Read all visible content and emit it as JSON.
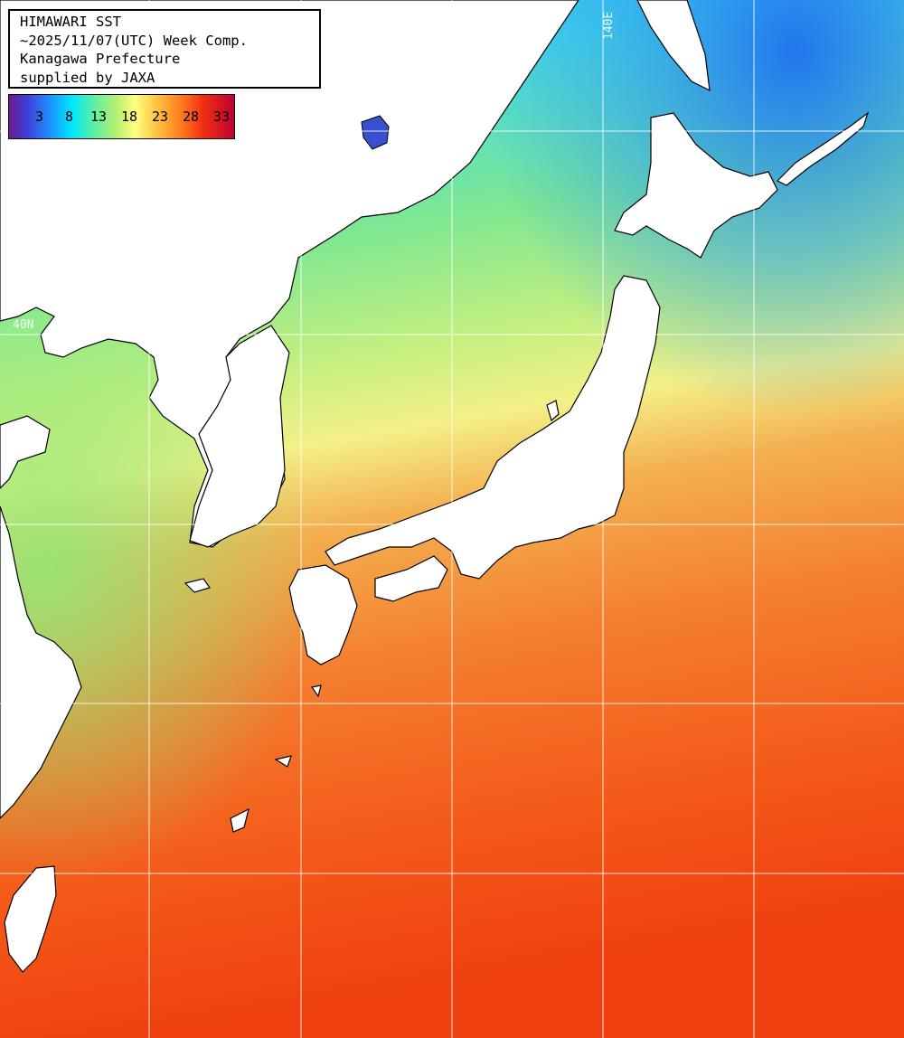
{
  "title": {
    "line1": "HIMAWARI SST",
    "line2": "~2025/11/07(UTC) Week Comp.",
    "line3": "Kanagawa Prefecture",
    "line4": "supplied by JAXA"
  },
  "legend": {
    "ticks": [
      "3",
      "8",
      "13",
      "18",
      "23",
      "28",
      "33"
    ],
    "colors": [
      "#6e1a8c",
      "#1e90ff",
      "#00e8ff",
      "#b9f070",
      "#ffff80",
      "#ff8020",
      "#c00030"
    ]
  },
  "grid_labels": {
    "lon": "140E",
    "lat": "40N"
  },
  "colors": {
    "land": "#ffffff",
    "coast": "#000000",
    "grid": "#ffffff"
  }
}
